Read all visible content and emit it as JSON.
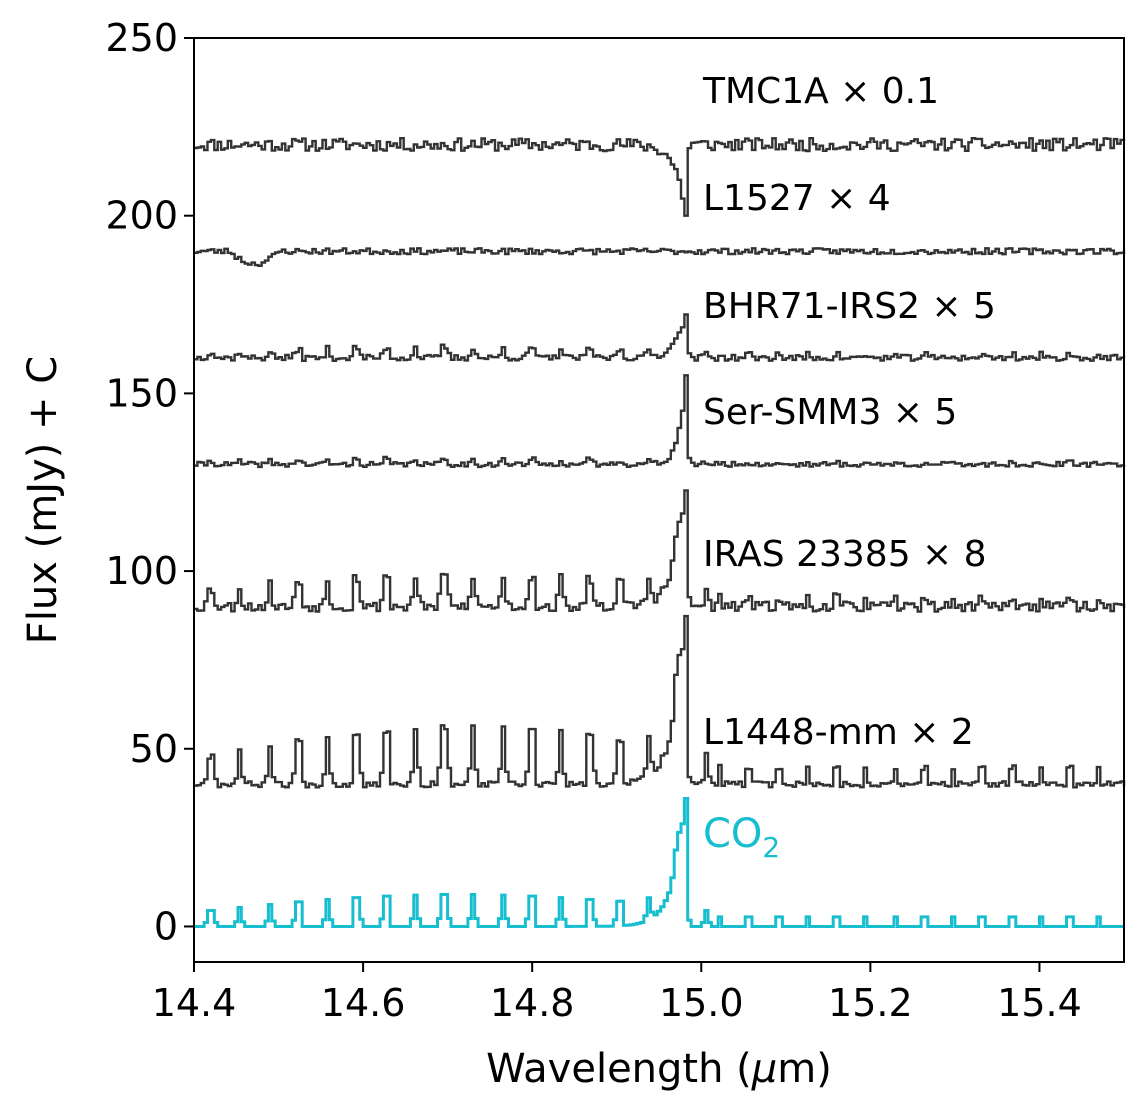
{
  "chart_data": {
    "type": "line",
    "title": "",
    "xlabel": "Wavelength (μm)",
    "xlabel_parts": [
      "Wavelength (",
      "μ",
      "m)"
    ],
    "ylabel": "Flux (mJy) + C",
    "xlim": [
      14.4,
      15.5
    ],
    "ylim": [
      -10,
      250
    ],
    "xticks": [
      14.4,
      14.6,
      14.8,
      15.0,
      15.2,
      15.4
    ],
    "xtick_labels": [
      "14.4",
      "14.6",
      "14.8",
      "15.0",
      "15.2",
      "15.4"
    ],
    "yticks": [
      0,
      50,
      100,
      150,
      200,
      250
    ],
    "ytick_labels": [
      "0",
      "50",
      "100",
      "150",
      "200",
      "250"
    ],
    "grid": false,
    "q_branch_um": 14.98,
    "series": [
      {
        "name": "TMC1A",
        "label": "TMC1A × 0.1",
        "color": "#333333",
        "offset": 220,
        "noise": 1.3,
        "q_peak": -20,
        "q_width": 0.012,
        "line_amp": 0,
        "seed": 11
      },
      {
        "name": "L1527",
        "label": "L1527 × 4",
        "color": "#333333",
        "offset": 190,
        "noise": 0.6,
        "q_peak": 0,
        "q_width": 0.01,
        "line_amp": 0,
        "seed": 23
      },
      {
        "name": "BHR71-IRS2",
        "label": "BHR71-IRS2 × 5",
        "color": "#333333",
        "offset": 160,
        "noise": 0.6,
        "q_peak": 12,
        "q_width": 0.012,
        "line_amp": 3,
        "seed": 37
      },
      {
        "name": "Ser-SMM3",
        "label": "Ser-SMM3 × 5",
        "color": "#333333",
        "offset": 130,
        "noise": 0.5,
        "q_peak": 25,
        "q_width": 0.008,
        "line_amp": 1.5,
        "seed": 41
      },
      {
        "name": "IRAS 23385",
        "label": "IRAS 23385 × 8",
        "color": "#333333",
        "offset": 90,
        "noise": 1.0,
        "q_peak": 33,
        "q_width": 0.014,
        "line_amp": 9,
        "seed": 53
      },
      {
        "name": "L1448-mm",
        "label": "L1448-mm × 2",
        "color": "#333333",
        "offset": 40,
        "noise": 0.6,
        "q_peak": 47,
        "q_width": 0.015,
        "line_amp": 16,
        "seed": 67
      },
      {
        "name": "CO2",
        "label": "CO",
        "label_sub": "2",
        "color": "#17becf",
        "offset": 0,
        "noise": 0,
        "q_peak": 36,
        "q_width": 0.015,
        "line_amp": 9,
        "seed": 1
      }
    ]
  }
}
